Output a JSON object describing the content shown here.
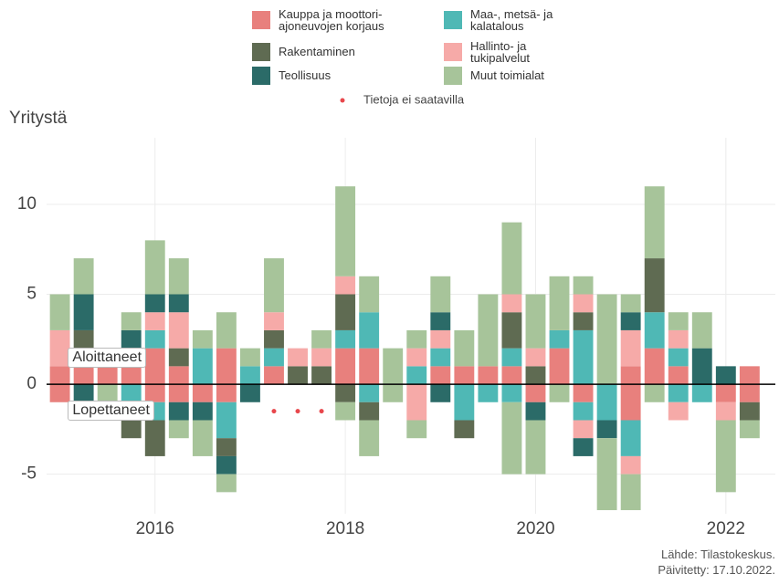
{
  "chart_data": {
    "type": "bar",
    "ylabel": "Yritystä",
    "x": [
      2015,
      2015.25,
      2015.5,
      2015.75,
      2016,
      2016.25,
      2016.5,
      2016.75,
      2017,
      2017.25,
      2017.5,
      2017.75,
      2018,
      2018.25,
      2018.5,
      2018.75,
      2019,
      2019.25,
      2019.5,
      2019.75,
      2020,
      2020.25,
      2020.5,
      2020.75,
      2021,
      2021.25,
      2021.5,
      2021.75,
      2022,
      2022.25
    ],
    "series": [
      {
        "name": "Kauppa ja moottori-\najoneuvojen korjaus",
        "color": "#e8807d",
        "started": [
          1,
          2,
          1,
          2,
          2,
          1,
          0,
          2,
          0,
          1,
          0,
          0,
          2,
          2,
          0,
          0,
          1,
          1,
          1,
          1,
          0,
          2,
          0,
          0,
          1,
          2,
          1,
          0,
          0,
          1
        ],
        "ended": [
          -1,
          0,
          0,
          0,
          -1,
          -1,
          -1,
          -1,
          0,
          null,
          null,
          null,
          0,
          0,
          0,
          0,
          0,
          0,
          0,
          0,
          -1,
          0,
          -1,
          0,
          -2,
          0,
          0,
          0,
          -1,
          -1
        ]
      },
      {
        "name": "Maa-, metsä- ja\nkalatalous",
        "color": "#4fb8b5",
        "started": [
          0,
          0,
          0,
          0,
          1,
          0,
          2,
          0,
          1,
          1,
          0,
          0,
          1,
          2,
          0,
          1,
          1,
          0,
          0,
          1,
          0,
          1,
          3,
          0,
          0,
          2,
          1,
          0,
          0,
          0
        ],
        "ended": [
          0,
          0,
          0,
          -1,
          -1,
          0,
          0,
          -2,
          0,
          null,
          null,
          null,
          0,
          -1,
          0,
          0,
          0,
          -2,
          -1,
          -1,
          0,
          0,
          -1,
          -2,
          -2,
          0,
          -1,
          -1,
          0,
          0
        ]
      },
      {
        "name": "Rakentaminen",
        "color": "#5f6b52",
        "started": [
          0,
          1,
          0,
          0,
          0,
          1,
          0,
          0,
          0,
          1,
          1,
          1,
          2,
          0,
          0,
          0,
          0,
          0,
          0,
          2,
          1,
          0,
          1,
          0,
          0,
          3,
          0,
          0,
          0,
          0
        ],
        "ended": [
          0,
          0,
          0,
          -2,
          -2,
          0,
          0,
          -1,
          0,
          null,
          null,
          null,
          -1,
          -1,
          0,
          0,
          0,
          -1,
          0,
          0,
          0,
          0,
          0,
          0,
          0,
          0,
          0,
          0,
          0,
          -1
        ]
      },
      {
        "name": "Hallinto- ja\ntukipalvelut",
        "color": "#f6aaa8",
        "started": [
          2,
          0,
          0,
          0,
          1,
          2,
          0,
          0,
          0,
          1,
          1,
          1,
          1,
          0,
          0,
          1,
          1,
          0,
          0,
          1,
          1,
          0,
          1,
          0,
          2,
          0,
          1,
          0,
          0,
          0
        ],
        "ended": [
          0,
          0,
          0,
          0,
          0,
          0,
          0,
          0,
          0,
          null,
          null,
          null,
          0,
          0,
          0,
          -2,
          0,
          0,
          0,
          0,
          0,
          0,
          -1,
          0,
          -1,
          0,
          -1,
          0,
          -1,
          0
        ]
      },
      {
        "name": "Teollisuus",
        "color": "#2b6b68",
        "started": [
          0,
          2,
          0,
          1,
          1,
          1,
          0,
          0,
          0,
          0,
          0,
          0,
          0,
          0,
          0,
          0,
          1,
          0,
          0,
          0,
          0,
          0,
          0,
          0,
          1,
          0,
          0,
          2,
          1,
          0
        ],
        "ended": [
          0,
          -1,
          0,
          0,
          0,
          -1,
          -1,
          -1,
          -1,
          null,
          null,
          null,
          0,
          0,
          0,
          0,
          -1,
          0,
          0,
          0,
          -1,
          0,
          -1,
          -1,
          0,
          0,
          0,
          0,
          0,
          0
        ]
      },
      {
        "name": "Muut toimialat",
        "color": "#a7c49a",
        "started": [
          2,
          2,
          0,
          1,
          3,
          2,
          1,
          2,
          1,
          3,
          0,
          1,
          5,
          2,
          2,
          1,
          2,
          2,
          4,
          4,
          3,
          3,
          1,
          5,
          1,
          4,
          1,
          2,
          0,
          0
        ],
        "ended": [
          0,
          0,
          -1,
          0,
          0,
          -1,
          -2,
          -1,
          0,
          null,
          null,
          null,
          -1,
          -2,
          -1,
          -1,
          0,
          0,
          0,
          -4,
          -3,
          -1,
          0,
          -4,
          -2,
          -1,
          0,
          0,
          -4,
          -1
        ]
      }
    ],
    "missing": {
      "label": "Tietoja ei saatavilla",
      "x": [
        2017.25,
        2017.5,
        2017.75
      ],
      "y": -1.5,
      "color": "#e8474c"
    },
    "annotations": [
      {
        "text": "Aloittaneet",
        "x": 2015.2,
        "y": 1.4
      },
      {
        "text": "Lopettaneet",
        "x": 2015.2,
        "y": -1.5
      }
    ],
    "xlim": [
      2014.86,
      2022.52
    ],
    "ylim": [
      -7.2,
      13.7
    ],
    "xticks": [
      2016,
      2018,
      2020,
      2022
    ],
    "yticks": [
      -5,
      0,
      5,
      10
    ],
    "grid": true,
    "source": "Lähde: Tilastokeskus.",
    "updated": "Päivitetty: 17.10.2022."
  }
}
